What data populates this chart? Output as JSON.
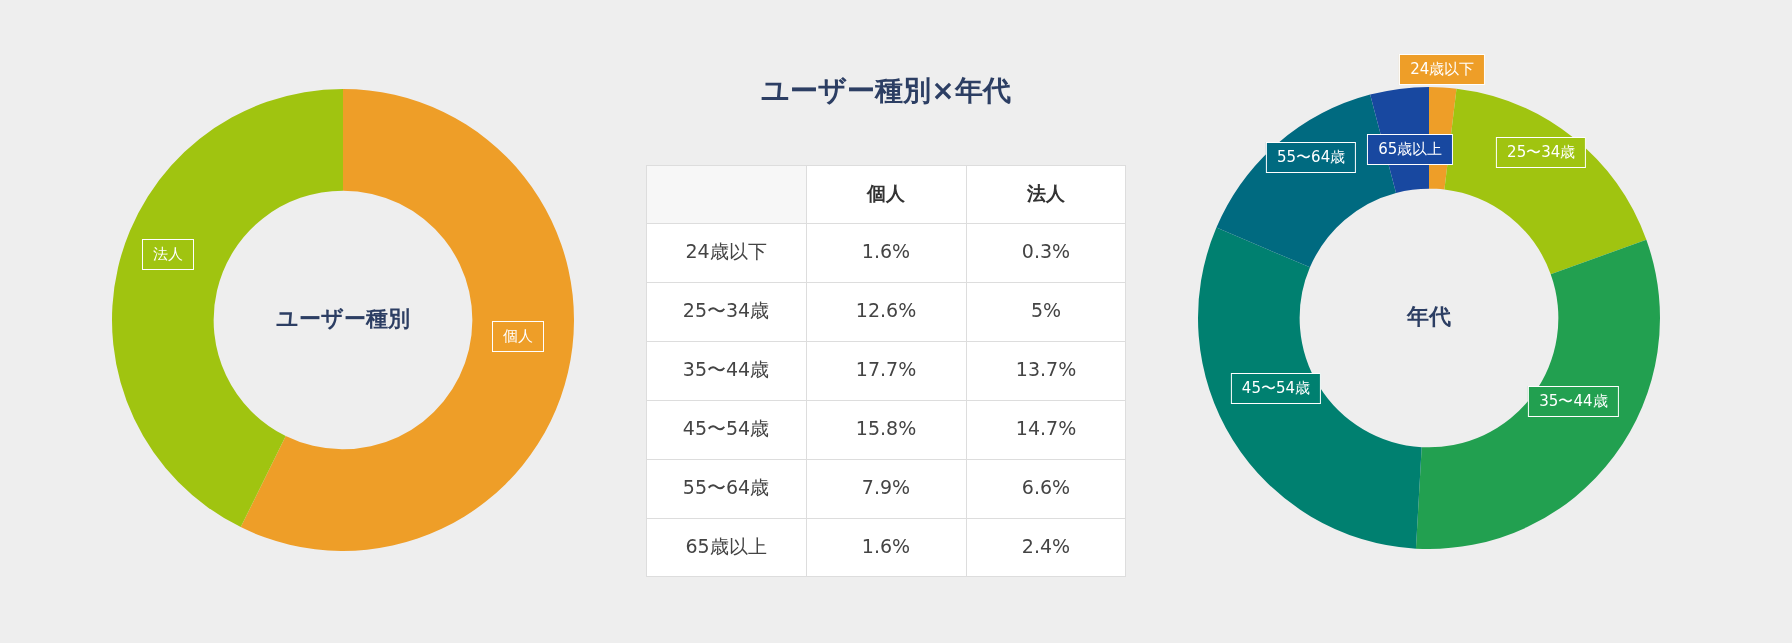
{
  "chart_data": [
    {
      "type": "donut",
      "title": "ユーザー種別",
      "categories": [
        "個人",
        "法人"
      ],
      "values": [
        57.3,
        42.7
      ],
      "colors": [
        "#ee9e28",
        "#a0c410"
      ]
    },
    {
      "type": "heatmap",
      "title": "ユーザー種別×年代",
      "categories": [
        "個人",
        "法人"
      ],
      "y_categories": [
        "24歳以下",
        "25〜34歳",
        "35〜44歳",
        "45〜54歳",
        "55〜64歳",
        "65歳以上"
      ],
      "cells": [
        [
          1.6,
          0.3
        ],
        [
          12.6,
          5
        ],
        [
          17.7,
          13.7
        ],
        [
          15.8,
          14.7
        ],
        [
          7.9,
          6.6
        ],
        [
          1.6,
          2.4
        ]
      ],
      "cell_labels": [
        [
          "1.6%",
          "0.3%"
        ],
        [
          "12.6%",
          "5%"
        ],
        [
          "17.7%",
          "13.7%"
        ],
        [
          "15.8%",
          "14.7%"
        ],
        [
          "7.9%",
          "6.6%"
        ],
        [
          "1.6%",
          "2.4%"
        ]
      ]
    },
    {
      "type": "donut",
      "title": "年代",
      "categories": [
        "24歳以下",
        "25〜34歳",
        "35〜44歳",
        "45〜54歳",
        "55〜64歳",
        "65歳以上"
      ],
      "values": [
        1.9,
        17.6,
        31.4,
        30.5,
        14.5,
        4.1
      ],
      "colors": [
        "#ee9e28",
        "#a0c410",
        "#22a050",
        "#008070",
        "#006a80",
        "#1848a0"
      ]
    }
  ]
}
